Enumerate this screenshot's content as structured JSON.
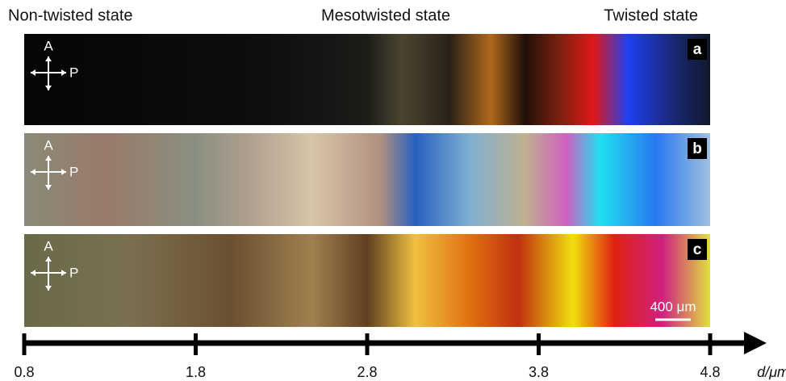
{
  "header": {
    "labels": [
      "Non-twisted state",
      "Mesotwisted state",
      "Twisted state"
    ]
  },
  "panels": [
    {
      "label": "a",
      "analyzer": "A",
      "polarizer": "P"
    },
    {
      "label": "b",
      "analyzer": "A",
      "polarizer": "P"
    },
    {
      "label": "c",
      "analyzer": "A",
      "polarizer": "P"
    }
  ],
  "scale_bar": "400 μm",
  "axis": {
    "label": "d/μm",
    "ticks": [
      0.8,
      1.8,
      2.8,
      3.8,
      4.8
    ]
  }
}
